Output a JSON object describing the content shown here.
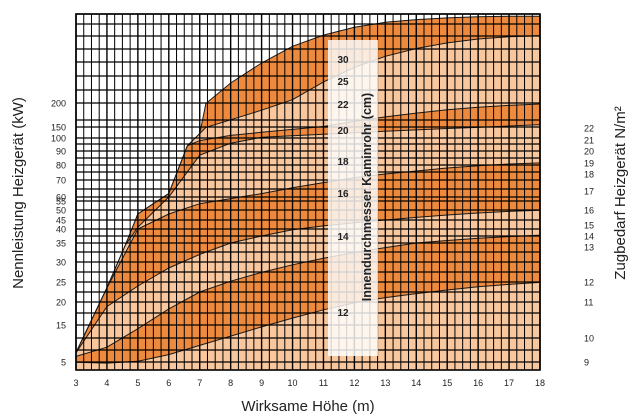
{
  "chart_data": {
    "type": "area",
    "xlabel": "Wirksame Höhe (m)",
    "ylabel_left": "Nennleistung Heizgerät (kW)",
    "ylabel_right": "Zugbedarf Heizgerät N/m²",
    "annotation": "Innendurchmesser Kaminrohr (cm)",
    "xlim": [
      3,
      18
    ],
    "x_ticks": [
      "3",
      "4",
      "5",
      "6",
      "7",
      "8",
      "9",
      "10",
      "11",
      "12",
      "13",
      "14",
      "15",
      "16",
      "17",
      "18"
    ],
    "left_ticks": [
      "5",
      "15",
      "20",
      "25",
      "30",
      "35",
      "40",
      "45",
      "50",
      "55",
      "60",
      "70",
      "80",
      "90",
      "100",
      "150",
      "200"
    ],
    "right_ticks": [
      "9",
      "10",
      "11",
      "12",
      "13",
      "14",
      "15",
      "16",
      "17",
      "18",
      "19",
      "20",
      "21",
      "22"
    ],
    "colors": {
      "dark": "#ee8a3e",
      "light": "#f8c79d",
      "accent": "#e0692a",
      "grid": "#000000"
    },
    "bands": [
      {
        "label": "12",
        "shade": "light",
        "upper": [
          [
            3,
            4.8
          ],
          [
            4,
            4.3
          ],
          [
            5,
            5.2
          ],
          [
            6,
            7.0
          ],
          [
            7,
            9.5
          ],
          [
            8,
            12.0
          ],
          [
            9,
            14.5
          ],
          [
            10,
            16.5
          ],
          [
            11,
            18.3
          ],
          [
            12,
            19.8
          ],
          [
            13,
            21.1
          ],
          [
            14,
            22.1
          ],
          [
            15,
            23.0
          ],
          [
            16,
            23.8
          ],
          [
            17,
            24.4
          ],
          [
            18,
            24.9
          ]
        ]
      },
      {
        "label": "14",
        "shade": "dark",
        "upper": [
          [
            3,
            6.5
          ],
          [
            4,
            9.0
          ],
          [
            5,
            14.0
          ],
          [
            6,
            18.5
          ],
          [
            7,
            22.5
          ],
          [
            8,
            25.2
          ],
          [
            9,
            27.4
          ],
          [
            10,
            29.3
          ],
          [
            11,
            31.0
          ],
          [
            12,
            32.5
          ],
          [
            13,
            33.8
          ],
          [
            14,
            35.0
          ],
          [
            15,
            35.9
          ],
          [
            16,
            36.7
          ],
          [
            17,
            37.3
          ],
          [
            18,
            37.8
          ]
        ]
      },
      {
        "label": "16",
        "shade": "light",
        "upper": [
          [
            3,
            7.5
          ],
          [
            4,
            19.0
          ],
          [
            5,
            24.0
          ],
          [
            6,
            28.5
          ],
          [
            7,
            32.0
          ],
          [
            8,
            35.0
          ],
          [
            9,
            37.5
          ],
          [
            10,
            39.7
          ],
          [
            11,
            41.7
          ],
          [
            12,
            43.5
          ],
          [
            13,
            45.0
          ],
          [
            14,
            46.3
          ],
          [
            15,
            47.5
          ],
          [
            16,
            48.5
          ],
          [
            17,
            49.3
          ],
          [
            18,
            49.9
          ]
        ]
      },
      {
        "label": "18",
        "shade": "dark",
        "upper": [
          [
            3,
            7.5
          ],
          [
            4,
            23.5
          ],
          [
            5,
            40.0
          ],
          [
            6,
            48.0
          ],
          [
            7,
            53.5
          ],
          [
            8,
            58.0
          ],
          [
            9,
            62.0
          ],
          [
            10,
            65.5
          ],
          [
            11,
            68.5
          ],
          [
            12,
            71.5
          ],
          [
            13,
            74.0
          ],
          [
            14,
            76.0
          ],
          [
            15,
            78.0
          ],
          [
            16,
            79.5
          ],
          [
            17,
            80.7
          ],
          [
            18,
            81.5
          ]
        ]
      },
      {
        "label": "20",
        "shade": "light",
        "upper": [
          [
            3,
            7.5
          ],
          [
            4,
            23.5
          ],
          [
            4.6,
            34.5
          ],
          [
            5,
            41.0
          ],
          [
            6,
            60.0
          ],
          [
            7,
            87.0
          ],
          [
            8,
            96.0
          ],
          [
            9,
            103.0
          ],
          [
            10,
            110.0
          ],
          [
            11,
            117.0
          ],
          [
            12,
            124.0
          ],
          [
            13,
            131.0
          ],
          [
            14,
            137.0
          ],
          [
            15,
            143.0
          ],
          [
            16,
            148.0
          ],
          [
            17,
            152.0
          ],
          [
            18,
            155.0
          ]
        ]
      },
      {
        "label": "22",
        "shade": "dark",
        "upper": [
          [
            3,
            7.5
          ],
          [
            4,
            23.5
          ],
          [
            4.6,
            34.5
          ],
          [
            5,
            48.0
          ],
          [
            6,
            62.0
          ],
          [
            6.6,
            94.0
          ],
          [
            7,
            98.0
          ],
          [
            8,
            112.0
          ],
          [
            9,
            126.0
          ],
          [
            10,
            139.0
          ],
          [
            11,
            151.0
          ],
          [
            12,
            162.0
          ],
          [
            13,
            171.0
          ],
          [
            14,
            179.0
          ],
          [
            15,
            186.0
          ],
          [
            16,
            191.0
          ],
          [
            17,
            195.0
          ],
          [
            18,
            198.0
          ]
        ]
      },
      {
        "label": "25",
        "shade": "light",
        "upper": [
          [
            3,
            7.5
          ],
          [
            4,
            23.5
          ],
          [
            4.6,
            34.5
          ],
          [
            5,
            48.0
          ],
          [
            6,
            62.0
          ],
          [
            6.6,
            94.0
          ],
          [
            7,
            120.0
          ],
          [
            7.2,
            148.0
          ],
          [
            8,
            165.0
          ],
          [
            9,
            185.0
          ],
          [
            10,
            203.0
          ],
          [
            11,
            219.0
          ],
          [
            12,
            232.0
          ],
          [
            13,
            242.0
          ],
          [
            14,
            249.0
          ],
          [
            15,
            254.0
          ],
          [
            16,
            257.5
          ],
          [
            17,
            259.5
          ],
          [
            18,
            260.5
          ]
        ]
      },
      {
        "label": "30",
        "shade": "dark",
        "upper": [
          [
            3,
            7.5
          ],
          [
            4,
            23.5
          ],
          [
            4.6,
            34.5
          ],
          [
            5,
            48.0
          ],
          [
            6,
            62.0
          ],
          [
            6.6,
            94.0
          ],
          [
            7,
            120.0
          ],
          [
            7.2,
            199.0
          ],
          [
            8,
            218.0
          ],
          [
            9,
            236.0
          ],
          [
            10,
            251.0
          ],
          [
            11,
            261.0
          ],
          [
            12,
            268.0
          ],
          [
            13,
            272.5
          ],
          [
            14,
            275.0
          ],
          [
            15,
            276.5
          ],
          [
            16,
            277.5
          ],
          [
            17,
            278.0
          ],
          [
            18,
            278.0
          ]
        ]
      }
    ]
  }
}
